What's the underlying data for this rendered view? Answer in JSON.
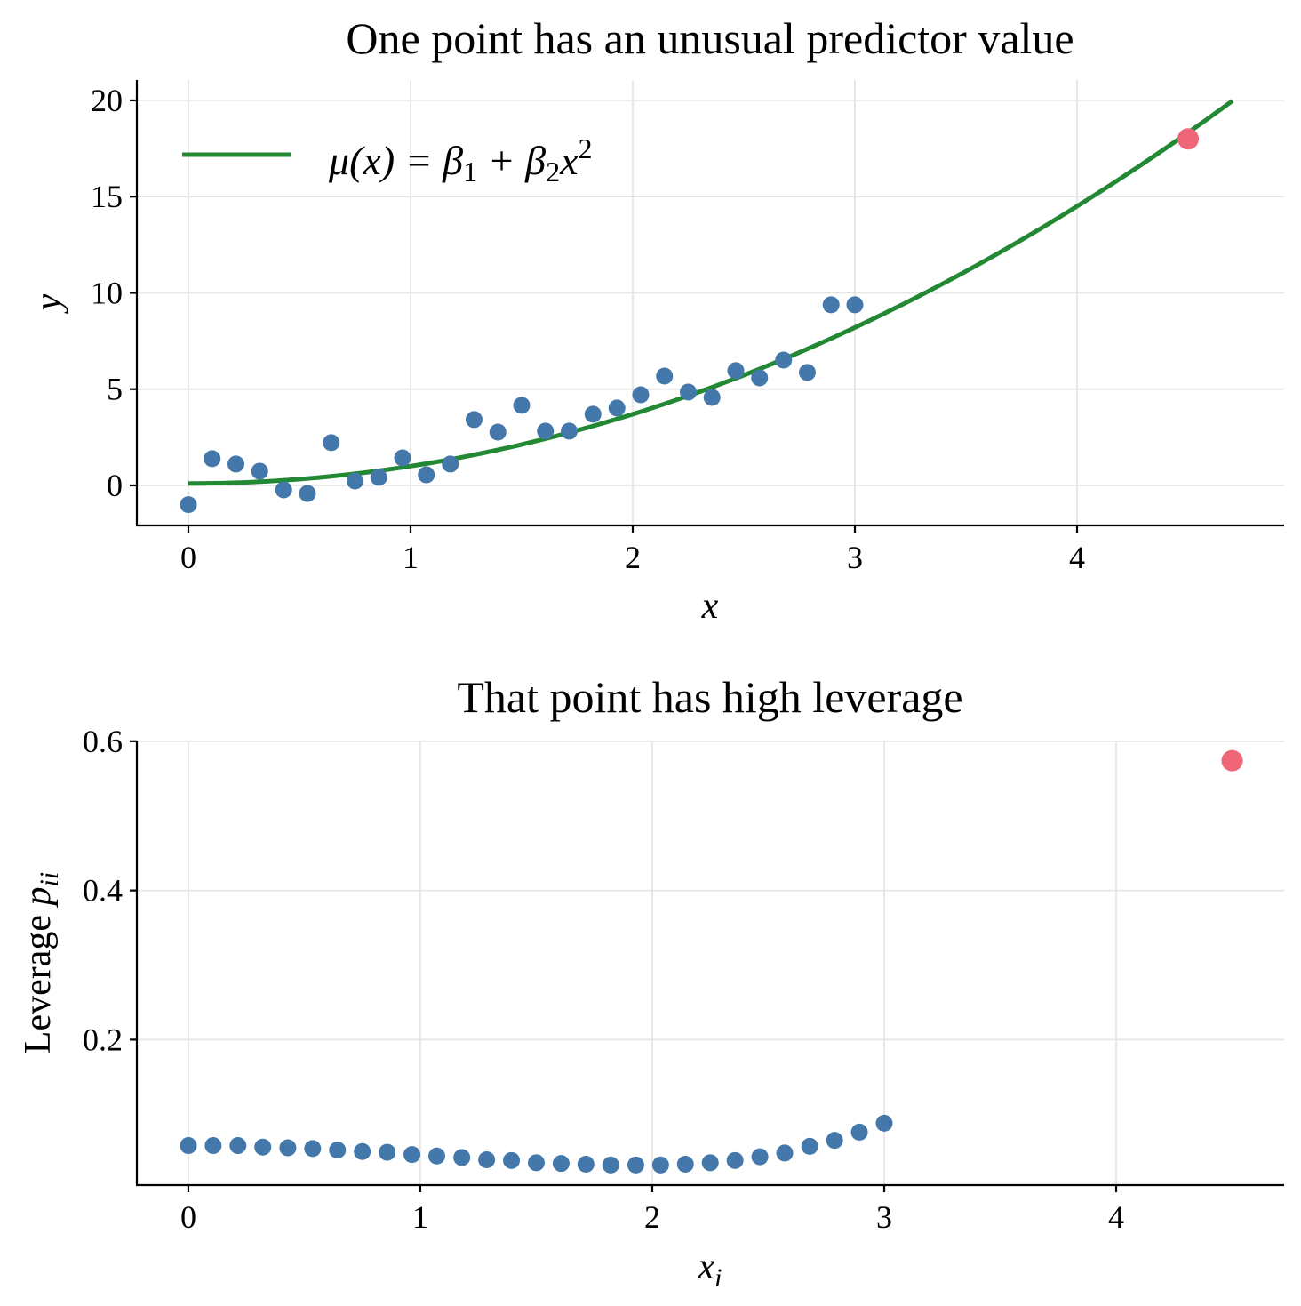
{
  "chart_data": [
    {
      "type": "scatter",
      "title": "One point has an unusual predictor value",
      "xlabel": "x",
      "ylabel": "y",
      "xlim": [
        -0.232,
        4.932
      ],
      "ylim": [
        -2.08,
        21.06
      ],
      "xticks": [
        0,
        1,
        2,
        3,
        4
      ],
      "xtick_labels": [
        "0",
        "1",
        "2",
        "3",
        "4"
      ],
      "yticks": [
        0,
        5,
        10,
        15,
        20
      ],
      "ytick_labels": [
        "0",
        "5",
        "10",
        "15",
        "20"
      ],
      "grid": true,
      "legend": {
        "placement": "top-left",
        "entries": [
          {
            "label": "μ(x) = β1 + β2 x²",
            "color": "#228833"
          }
        ]
      },
      "series": [
        {
          "name": "observations",
          "kind": "scatter",
          "color": "#4477aa",
          "x": [
            0.0,
            0.107,
            0.214,
            0.321,
            0.429,
            0.536,
            0.643,
            0.75,
            0.857,
            0.964,
            1.071,
            1.179,
            1.286,
            1.393,
            1.5,
            1.607,
            1.714,
            1.821,
            1.929,
            2.036,
            2.143,
            2.25,
            2.357,
            2.464,
            2.571,
            2.679,
            2.786,
            2.893,
            3.0
          ],
          "y": [
            -1.0,
            1.39,
            1.11,
            0.74,
            -0.23,
            -0.42,
            2.22,
            0.23,
            0.42,
            1.43,
            0.55,
            1.11,
            3.42,
            2.77,
            4.16,
            2.82,
            2.82,
            3.7,
            4.02,
            4.71,
            5.68,
            4.85,
            4.57,
            5.96,
            5.59,
            6.51,
            5.87,
            9.38,
            9.38
          ]
        },
        {
          "name": "unusual point",
          "kind": "scatter",
          "color": "#ee6677",
          "x": [
            4.5
          ],
          "y": [
            18.0
          ]
        },
        {
          "name": "fit",
          "kind": "line",
          "color": "#228833",
          "formula": "mu(x) = beta1 + beta2 * x^2",
          "beta1": 0.1,
          "beta2": 0.9,
          "x_range": [
            0,
            4.7
          ]
        }
      ]
    },
    {
      "type": "scatter",
      "title": "That point has high leverage",
      "xlabel": "x_i",
      "ylabel": "Leverage p_ii",
      "xlim": [
        -0.222,
        4.724
      ],
      "ylim": [
        0.005,
        0.601
      ],
      "xticks": [
        0,
        1,
        2,
        3,
        4
      ],
      "xtick_labels": [
        "0",
        "1",
        "2",
        "3",
        "4"
      ],
      "yticks": [
        0.2,
        0.4,
        0.6
      ],
      "ytick_labels": [
        "0.2",
        "0.4",
        "0.6"
      ],
      "grid": true,
      "series": [
        {
          "name": "leverage",
          "kind": "scatter",
          "color": "#4477aa",
          "x": [
            0.0,
            0.107,
            0.214,
            0.321,
            0.429,
            0.536,
            0.643,
            0.75,
            0.857,
            0.964,
            1.071,
            1.179,
            1.286,
            1.393,
            1.5,
            1.607,
            1.714,
            1.821,
            1.929,
            2.036,
            2.143,
            2.25,
            2.357,
            2.464,
            2.571,
            2.679,
            2.786,
            2.893,
            3.0
          ],
          "y": [
            0.058,
            0.058,
            0.058,
            0.056,
            0.055,
            0.054,
            0.052,
            0.05,
            0.049,
            0.046,
            0.044,
            0.042,
            0.039,
            0.038,
            0.035,
            0.034,
            0.033,
            0.032,
            0.032,
            0.032,
            0.033,
            0.035,
            0.038,
            0.043,
            0.048,
            0.057,
            0.065,
            0.076,
            0.088
          ]
        },
        {
          "name": "high-leverage point",
          "kind": "scatter",
          "color": "#ee6677",
          "x": [
            4.5
          ],
          "y": [
            0.574
          ]
        }
      ]
    }
  ],
  "top": {
    "title": "One point has an unusual predictor value",
    "xlabel": "x",
    "ylabel": "y",
    "legend_label": "μ(x) = β1 + β2x2"
  },
  "bottom": {
    "title": "That point has high leverage",
    "xlabel": "x",
    "xlabel_sub": "i",
    "ylabel": "Leverage ",
    "ylabel_var": "p",
    "ylabel_sub": "ii"
  }
}
